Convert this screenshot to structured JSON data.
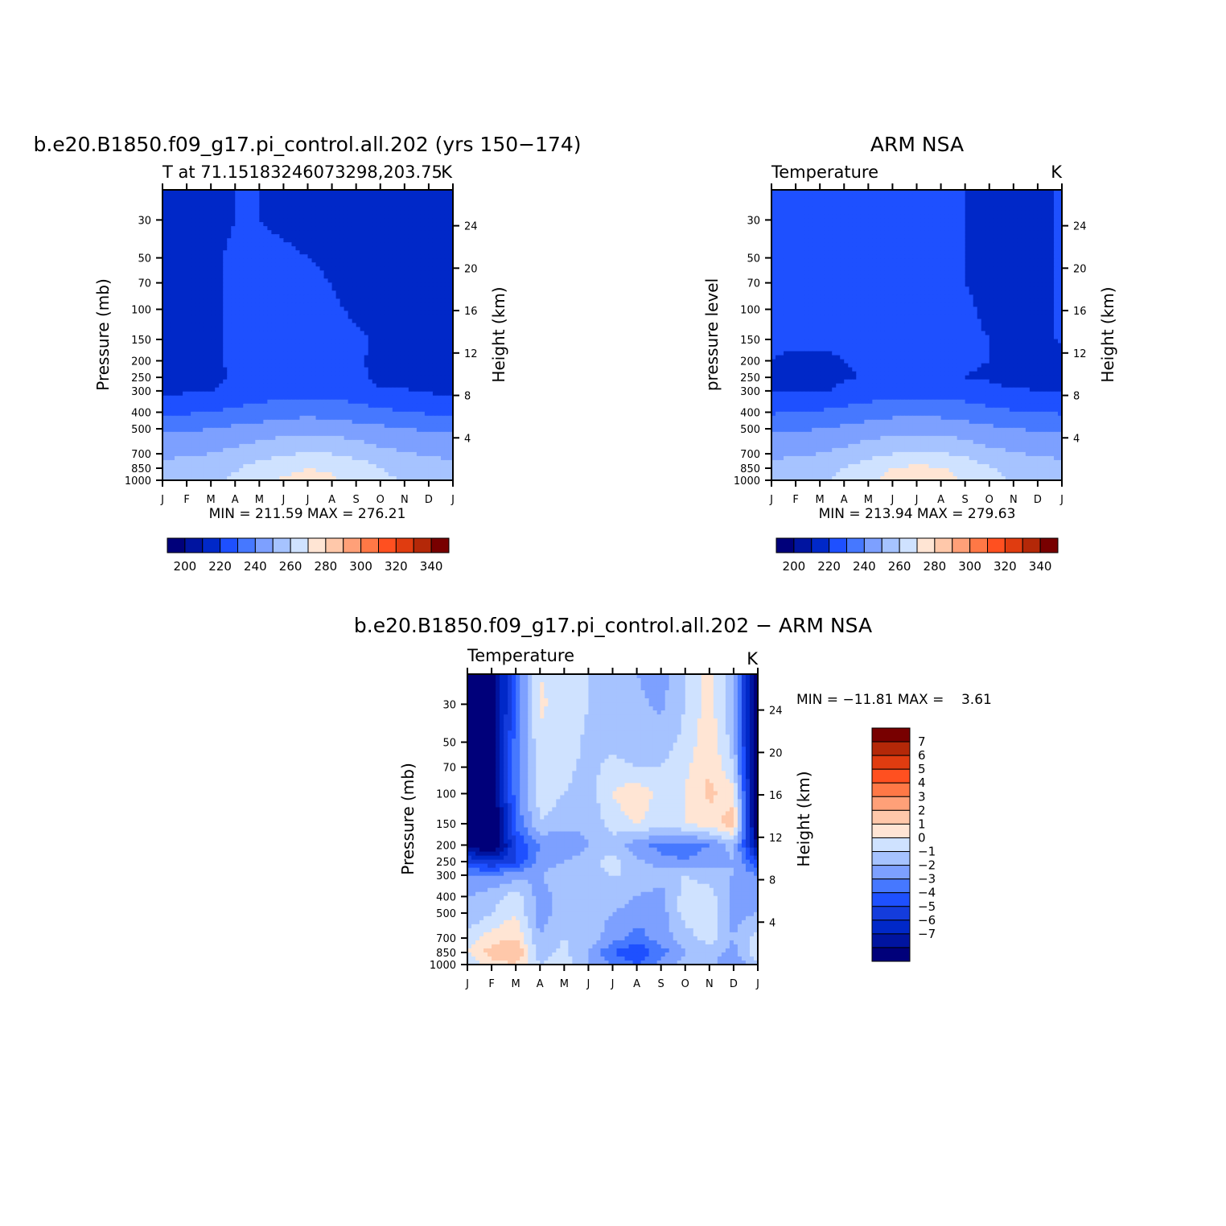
{
  "page": {
    "top_left_title": "b.e20.B1850.f09_g17.pi_control.all.202 (yrs 150-174)",
    "top_right_title": "ARM NSA",
    "bottom_title": "b.e20.B1850.f09_g17.pi_control.all.202 - ARM NSA"
  },
  "chart_data": [
    {
      "type": "heatmap",
      "title": "b.e20.B1850.f09_g17.pi_control.all.202 (yrs 150-174)",
      "subtitle": "T at 71.15183246073298,203.75",
      "units": "K",
      "xlabel": "",
      "ylabel": "Pressure (mb)",
      "ylabel_right": "Height (km)",
      "x_ticks": [
        "J",
        "F",
        "M",
        "A",
        "M",
        "J",
        "J",
        "A",
        "S",
        "O",
        "N",
        "D",
        "J"
      ],
      "y_ticks": [
        30,
        50,
        70,
        100,
        150,
        200,
        250,
        300,
        400,
        500,
        700,
        850,
        1000
      ],
      "y_scale": "log",
      "ylim": [
        1000,
        20
      ],
      "right_ticks": [
        24,
        20,
        16,
        12,
        8,
        4
      ],
      "stats": "MIN = 211.59 MAX = 276.21",
      "min": 211.59,
      "max": 276.21,
      "colorbar": {
        "levels": [
          190,
          200,
          210,
          220,
          230,
          240,
          250,
          260,
          270,
          280,
          290,
          300,
          310,
          320,
          330,
          340,
          350
        ],
        "labels": [
          "200",
          "220",
          "240",
          "260",
          "280",
          "300",
          "320",
          "340"
        ],
        "colors": [
          "#00007a",
          "#0014a0",
          "#0028c8",
          "#1e50ff",
          "#4678ff",
          "#7da0ff",
          "#a6c3ff",
          "#cfe2ff",
          "#ffe5d4",
          "#ffc8aa",
          "#ffa078",
          "#ff7846",
          "#ff5020",
          "#e03c10",
          "#b42808",
          "#780000"
        ]
      },
      "months": [
        "J",
        "F",
        "M",
        "A",
        "M",
        "J",
        "J",
        "A",
        "S",
        "O",
        "N",
        "D",
        "J"
      ],
      "levels_mb": [
        20,
        30,
        50,
        70,
        100,
        150,
        200,
        250,
        300,
        400,
        500,
        700,
        850,
        1000
      ],
      "values": [
        [
          212,
          214,
          218,
          220,
          220,
          219,
          218,
          217,
          215,
          213,
          213,
          212,
          212
        ],
        [
          212,
          214,
          218,
          220,
          220,
          219,
          218,
          217,
          215,
          213,
          213,
          212,
          212
        ],
        [
          212,
          214,
          219,
          221,
          221,
          221,
          220,
          219,
          216,
          214,
          213,
          212,
          212
        ],
        [
          212,
          214,
          219,
          221,
          221,
          221,
          221,
          220,
          217,
          215,
          214,
          212,
          212
        ],
        [
          212,
          214,
          219,
          221,
          221,
          221,
          221,
          221,
          219,
          217,
          214,
          212,
          212
        ],
        [
          213,
          215,
          219,
          221,
          222,
          222,
          222,
          222,
          221,
          219,
          215,
          213,
          213
        ],
        [
          213,
          215,
          218,
          222,
          223,
          223,
          223,
          223,
          222,
          217,
          215,
          213,
          213
        ],
        [
          214,
          215,
          216,
          222,
          224,
          224,
          224,
          224,
          223,
          216,
          215,
          214,
          214
        ],
        [
          218,
          219,
          220,
          223,
          225,
          226,
          226,
          226,
          225,
          222,
          221,
          219,
          218
        ],
        [
          228,
          229,
          230,
          232,
          234,
          236,
          237,
          236,
          234,
          232,
          230,
          229,
          228
        ],
        [
          238,
          239,
          240,
          242,
          244,
          246,
          247,
          246,
          244,
          242,
          240,
          239,
          238
        ],
        [
          248,
          249,
          250,
          253,
          256,
          259,
          261,
          260,
          257,
          253,
          251,
          249,
          248
        ],
        [
          253,
          254,
          255,
          259,
          264,
          268,
          270,
          269,
          266,
          260,
          256,
          254,
          253
        ],
        [
          255,
          256,
          258,
          262,
          266,
          271,
          272,
          271,
          268,
          263,
          259,
          256,
          255
        ]
      ]
    },
    {
      "type": "heatmap",
      "title": "ARM NSA",
      "subtitle": "Temperature",
      "units": "K",
      "xlabel": "",
      "ylabel": "pressure level",
      "ylabel_right": "Height (km)",
      "x_ticks": [
        "J",
        "F",
        "M",
        "A",
        "M",
        "J",
        "J",
        "A",
        "S",
        "O",
        "N",
        "D",
        "J"
      ],
      "y_ticks": [
        30,
        50,
        70,
        100,
        150,
        200,
        250,
        300,
        400,
        500,
        700,
        850,
        1000
      ],
      "y_scale": "log",
      "ylim": [
        1000,
        20
      ],
      "right_ticks": [
        24,
        20,
        16,
        12,
        8,
        4
      ],
      "stats": "MIN = 213.94 MAX = 279.63",
      "min": 213.94,
      "max": 279.63,
      "colorbar": {
        "levels": [
          190,
          200,
          210,
          220,
          230,
          240,
          250,
          260,
          270,
          280,
          290,
          300,
          310,
          320,
          330,
          340,
          350
        ],
        "labels": [
          "200",
          "220",
          "240",
          "260",
          "280",
          "300",
          "320",
          "340"
        ],
        "colors": [
          "#00007a",
          "#0014a0",
          "#0028c8",
          "#1e50ff",
          "#4678ff",
          "#7da0ff",
          "#a6c3ff",
          "#cfe2ff",
          "#ffe5d4",
          "#ffc8aa",
          "#ffa078",
          "#ff7846",
          "#ff5020",
          "#e03c10",
          "#b42808",
          "#780000"
        ]
      },
      "months": [
        "J",
        "F",
        "M",
        "A",
        "M",
        "J",
        "J",
        "A",
        "S",
        "O",
        "N",
        "D",
        "J"
      ],
      "levels_mb": [
        20,
        30,
        50,
        70,
        100,
        150,
        200,
        250,
        300,
        400,
        500,
        700,
        850,
        1000
      ],
      "values": [
        [
          221,
          221,
          221,
          221,
          221,
          221,
          221,
          221,
          220,
          218,
          217,
          218,
          221
        ],
        [
          221,
          221,
          221,
          221,
          221,
          221,
          221,
          221,
          220,
          218,
          216,
          218,
          221
        ],
        [
          221,
          221,
          221,
          221,
          221,
          222,
          221,
          221,
          220,
          218,
          216,
          217,
          221
        ],
        [
          221,
          221,
          221,
          221,
          221,
          221,
          221,
          221,
          220,
          218,
          216,
          217,
          221
        ],
        [
          221,
          221,
          221,
          221,
          221,
          221,
          221,
          221,
          221,
          219,
          217,
          217,
          221
        ],
        [
          221,
          221,
          221,
          221,
          221,
          221,
          221,
          221,
          221,
          220,
          218,
          217,
          221
        ],
        [
          220,
          219,
          219,
          220,
          221,
          221,
          221,
          221,
          221,
          220,
          218,
          216,
          218
        ],
        [
          218,
          216,
          216,
          219,
          221,
          221,
          221,
          221,
          220,
          219,
          217,
          216,
          216
        ],
        [
          220,
          219,
          219,
          222,
          224,
          226,
          226,
          226,
          225,
          222,
          221,
          220,
          220
        ],
        [
          229,
          230,
          231,
          233,
          235,
          237,
          238,
          237,
          235,
          233,
          231,
          230,
          229
        ],
        [
          238,
          239,
          240,
          242,
          244,
          246,
          247,
          246,
          244,
          242,
          240,
          239,
          238
        ],
        [
          248,
          249,
          250,
          253,
          257,
          260,
          262,
          261,
          258,
          253,
          251,
          249,
          248
        ],
        [
          253,
          254,
          255,
          260,
          265,
          270,
          272,
          271,
          267,
          261,
          257,
          255,
          253
        ],
        [
          255,
          256,
          258,
          263,
          268,
          273,
          274,
          273,
          269,
          264,
          259,
          257,
          255
        ]
      ]
    },
    {
      "type": "heatmap",
      "title": "b.e20.B1850.f09_g17.pi_control.all.202 - ARM NSA",
      "subtitle": "Temperature",
      "units": "K",
      "xlabel": "",
      "ylabel": "Pressure (mb)",
      "ylabel_right": "Height (km)",
      "x_ticks": [
        "J",
        "F",
        "M",
        "A",
        "M",
        "J",
        "J",
        "A",
        "S",
        "O",
        "N",
        "D",
        "J"
      ],
      "y_ticks": [
        30,
        50,
        70,
        100,
        150,
        200,
        250,
        300,
        400,
        500,
        700,
        850,
        1000
      ],
      "y_scale": "log",
      "ylim": [
        1000,
        20
      ],
      "right_ticks": [
        24,
        20,
        16,
        12,
        8,
        4
      ],
      "stats": "MIN = -11.81 MAX =    3.61",
      "min": -11.81,
      "max": 3.61,
      "colorbar": {
        "levels": [
          -8,
          -7,
          -6,
          -5,
          -4,
          -3,
          -2,
          -1,
          0,
          1,
          2,
          3,
          4,
          5,
          6,
          7,
          8
        ],
        "labels": [
          "7",
          "6",
          "5",
          "4",
          "3",
          "2",
          "1",
          "0",
          "-1",
          "-2",
          "-3",
          "-4",
          "-5",
          "-6",
          "-7"
        ],
        "colors": [
          "#00007a",
          "#0014a0",
          "#0028c8",
          "#143cdc",
          "#1e50ff",
          "#4678ff",
          "#7da0ff",
          "#a6c3ff",
          "#cfe2ff",
          "#ffe5d4",
          "#ffc8aa",
          "#ffa078",
          "#ff7846",
          "#ff5020",
          "#e03c10",
          "#b42808",
          "#780000"
        ]
      },
      "months": [
        "J",
        "F",
        "M",
        "A",
        "M",
        "J",
        "J",
        "A",
        "S",
        "O",
        "N",
        "D",
        "J"
      ],
      "levels_mb": [
        20,
        30,
        50,
        70,
        100,
        150,
        200,
        250,
        300,
        400,
        500,
        700,
        850,
        1000
      ],
      "values": [
        [
          -9,
          -8,
          -3,
          1,
          0.5,
          0,
          -0.5,
          -1,
          -1.5,
          0,
          1.5,
          -1,
          -9
        ],
        [
          -9,
          -8,
          -3,
          1.2,
          0.5,
          0,
          -0.5,
          -0.8,
          -1.2,
          0,
          1.5,
          -1,
          -9
        ],
        [
          -10,
          -8,
          -2.5,
          0.8,
          0.5,
          -0.2,
          -0.3,
          -0.5,
          -0.5,
          0.3,
          1.8,
          -0.5,
          -9
        ],
        [
          -10,
          -8,
          -2.5,
          0.6,
          0.3,
          -0.3,
          0.3,
          0,
          0,
          0.8,
          2,
          0,
          -9
        ],
        [
          -10,
          -8,
          -2.5,
          0.5,
          0,
          -0.5,
          1,
          1.8,
          0.5,
          1,
          2.2,
          1.5,
          -9
        ],
        [
          -10,
          -9,
          -2.8,
          0,
          -0.5,
          -0.8,
          0.5,
          1,
          0.5,
          1,
          1.5,
          2.5,
          -9
        ],
        [
          -7,
          -9,
          -4,
          -2,
          -2,
          -1,
          -0.5,
          -1.5,
          -2.5,
          -2.5,
          -2,
          -0.5,
          -7
        ],
        [
          -4,
          -5,
          -4,
          -1.5,
          -1,
          -0.5,
          0.5,
          -0.8,
          -1.5,
          -2,
          -1.5,
          -1,
          -4
        ],
        [
          -2,
          -2,
          -1.5,
          -1,
          -0.5,
          -0.3,
          0,
          0,
          -0.5,
          0,
          -0.5,
          -1,
          -2
        ],
        [
          -1,
          -0.5,
          0.5,
          -1.5,
          -0.5,
          -0.5,
          -0.5,
          -1,
          -1.5,
          0.5,
          0.5,
          -1.5,
          -1
        ],
        [
          -1,
          0,
          1,
          -1.5,
          -0.5,
          -0.5,
          -1,
          -1.5,
          -1.5,
          0.5,
          0.5,
          -1.5,
          -1
        ],
        [
          0.5,
          1.5,
          2,
          -1,
          0,
          -0.5,
          -1.5,
          -2.5,
          -1.5,
          -0.5,
          0.5,
          -1,
          0.5
        ],
        [
          1,
          2.5,
          3,
          -0.5,
          0.3,
          -1,
          -3,
          -4,
          -2.5,
          -1,
          -0.5,
          -1.5,
          1
        ],
        [
          0,
          1.5,
          2,
          0,
          0.5,
          -1,
          -2,
          -3,
          -1.5,
          -0.5,
          -0.5,
          -2,
          0
        ]
      ]
    }
  ]
}
